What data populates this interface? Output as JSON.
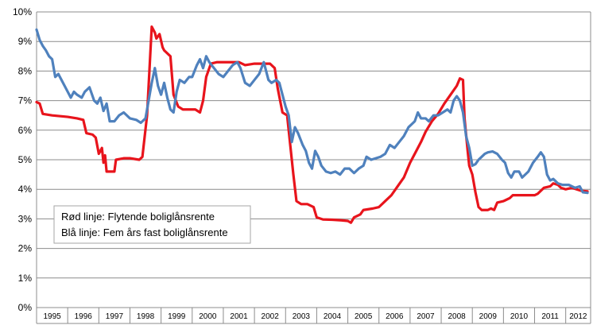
{
  "chart_data": {
    "type": "line",
    "title": "",
    "xlabel": "",
    "ylabel": "",
    "ylim": [
      0,
      10
    ],
    "yticks": [
      "0%",
      "1%",
      "2%",
      "3%",
      "4%",
      "5%",
      "6%",
      "7%",
      "8%",
      "9%",
      "10%"
    ],
    "xlim": [
      1995,
      2012.8
    ],
    "categories": [
      "1995",
      "1996",
      "1997",
      "1998",
      "1999",
      "2000",
      "2001",
      "2002",
      "2003",
      "2004",
      "2005",
      "2006",
      "2007",
      "2008",
      "2009",
      "2010",
      "2011",
      "2012"
    ],
    "grid": true,
    "legend": {
      "placement": "bottom-left",
      "lines": [
        "Rød linje: Flytende boliglånsrente",
        "Blå linje: Fem års fast boliglånsrente"
      ]
    },
    "series": [
      {
        "name": "Rød linje: Flytende boliglånsrente",
        "color": "#e8141c",
        "points": [
          [
            1995.0,
            6.95
          ],
          [
            1995.1,
            6.9
          ],
          [
            1995.2,
            6.55
          ],
          [
            1995.5,
            6.5
          ],
          [
            1996.0,
            6.45
          ],
          [
            1996.3,
            6.4
          ],
          [
            1996.5,
            6.35
          ],
          [
            1996.6,
            5.9
          ],
          [
            1996.8,
            5.85
          ],
          [
            1996.9,
            5.75
          ],
          [
            1997.0,
            5.2
          ],
          [
            1997.1,
            5.4
          ],
          [
            1997.15,
            4.9
          ],
          [
            1997.2,
            5.15
          ],
          [
            1997.25,
            4.6
          ],
          [
            1997.5,
            4.6
          ],
          [
            1997.55,
            5.0
          ],
          [
            1997.8,
            5.05
          ],
          [
            1998.0,
            5.05
          ],
          [
            1998.3,
            5.0
          ],
          [
            1998.4,
            5.1
          ],
          [
            1998.55,
            6.5
          ],
          [
            1998.65,
            8.5
          ],
          [
            1998.7,
            9.5
          ],
          [
            1998.8,
            9.3
          ],
          [
            1998.85,
            9.1
          ],
          [
            1998.95,
            9.25
          ],
          [
            1999.05,
            8.8
          ],
          [
            1999.1,
            8.7
          ],
          [
            1999.3,
            8.5
          ],
          [
            1999.4,
            7.2
          ],
          [
            1999.55,
            6.8
          ],
          [
            1999.7,
            6.7
          ],
          [
            1999.9,
            6.7
          ],
          [
            2000.1,
            6.7
          ],
          [
            2000.25,
            6.6
          ],
          [
            2000.35,
            7.0
          ],
          [
            2000.45,
            7.8
          ],
          [
            2000.6,
            8.25
          ],
          [
            2000.8,
            8.3
          ],
          [
            2001.0,
            8.3
          ],
          [
            2001.5,
            8.3
          ],
          [
            2001.7,
            8.2
          ],
          [
            2002.0,
            8.25
          ],
          [
            2002.3,
            8.25
          ],
          [
            2002.5,
            8.25
          ],
          [
            2002.65,
            8.1
          ],
          [
            2002.75,
            7.4
          ],
          [
            2002.9,
            6.6
          ],
          [
            2003.05,
            6.5
          ],
          [
            2003.15,
            5.5
          ],
          [
            2003.25,
            4.5
          ],
          [
            2003.35,
            3.6
          ],
          [
            2003.5,
            3.5
          ],
          [
            2003.7,
            3.5
          ],
          [
            2003.9,
            3.4
          ],
          [
            2004.0,
            3.05
          ],
          [
            2004.2,
            2.98
          ],
          [
            2004.5,
            2.97
          ],
          [
            2004.8,
            2.95
          ],
          [
            2005.0,
            2.93
          ],
          [
            2005.1,
            2.87
          ],
          [
            2005.2,
            3.05
          ],
          [
            2005.4,
            3.15
          ],
          [
            2005.5,
            3.3
          ],
          [
            2005.8,
            3.35
          ],
          [
            2006.0,
            3.4
          ],
          [
            2006.2,
            3.6
          ],
          [
            2006.4,
            3.8
          ],
          [
            2006.6,
            4.1
          ],
          [
            2006.8,
            4.4
          ],
          [
            2007.0,
            4.9
          ],
          [
            2007.2,
            5.3
          ],
          [
            2007.35,
            5.6
          ],
          [
            2007.5,
            5.95
          ],
          [
            2007.7,
            6.3
          ],
          [
            2007.9,
            6.55
          ],
          [
            2008.1,
            6.9
          ],
          [
            2008.3,
            7.2
          ],
          [
            2008.5,
            7.5
          ],
          [
            2008.6,
            7.75
          ],
          [
            2008.7,
            7.7
          ],
          [
            2008.75,
            6.4
          ],
          [
            2008.85,
            5.3
          ],
          [
            2008.9,
            4.8
          ],
          [
            2009.0,
            4.5
          ],
          [
            2009.1,
            3.9
          ],
          [
            2009.2,
            3.4
          ],
          [
            2009.3,
            3.3
          ],
          [
            2009.5,
            3.3
          ],
          [
            2009.6,
            3.35
          ],
          [
            2009.7,
            3.3
          ],
          [
            2009.8,
            3.55
          ],
          [
            2010.0,
            3.6
          ],
          [
            2010.2,
            3.7
          ],
          [
            2010.3,
            3.8
          ],
          [
            2010.6,
            3.8
          ],
          [
            2011.0,
            3.8
          ],
          [
            2011.1,
            3.85
          ],
          [
            2011.2,
            3.95
          ],
          [
            2011.3,
            4.05
          ],
          [
            2011.5,
            4.1
          ],
          [
            2011.6,
            4.2
          ],
          [
            2011.75,
            4.15
          ],
          [
            2011.85,
            4.05
          ],
          [
            2012.0,
            4.0
          ],
          [
            2012.2,
            4.05
          ],
          [
            2012.35,
            4.0
          ],
          [
            2012.5,
            3.95
          ],
          [
            2012.7,
            3.93
          ]
        ]
      },
      {
        "name": "Blå linje: Fem års fast boliglånsrente",
        "color": "#4f81bd",
        "points": [
          [
            1995.0,
            9.4
          ],
          [
            1995.1,
            9.05
          ],
          [
            1995.2,
            8.85
          ],
          [
            1995.3,
            8.7
          ],
          [
            1995.4,
            8.5
          ],
          [
            1995.5,
            8.4
          ],
          [
            1995.6,
            7.8
          ],
          [
            1995.7,
            7.9
          ],
          [
            1995.85,
            7.6
          ],
          [
            1996.0,
            7.3
          ],
          [
            1996.1,
            7.1
          ],
          [
            1996.2,
            7.3
          ],
          [
            1996.3,
            7.2
          ],
          [
            1996.45,
            7.1
          ],
          [
            1996.55,
            7.3
          ],
          [
            1996.7,
            7.45
          ],
          [
            1996.85,
            7.0
          ],
          [
            1996.95,
            6.9
          ],
          [
            1997.05,
            7.1
          ],
          [
            1997.15,
            6.65
          ],
          [
            1997.25,
            6.9
          ],
          [
            1997.35,
            6.3
          ],
          [
            1997.5,
            6.3
          ],
          [
            1997.65,
            6.5
          ],
          [
            1997.8,
            6.6
          ],
          [
            1998.0,
            6.4
          ],
          [
            1998.2,
            6.35
          ],
          [
            1998.35,
            6.25
          ],
          [
            1998.5,
            6.4
          ],
          [
            1998.6,
            7.0
          ],
          [
            1998.7,
            7.6
          ],
          [
            1998.8,
            8.1
          ],
          [
            1998.9,
            7.5
          ],
          [
            1999.0,
            7.2
          ],
          [
            1999.1,
            7.6
          ],
          [
            1999.2,
            7.1
          ],
          [
            1999.3,
            6.7
          ],
          [
            1999.4,
            6.6
          ],
          [
            1999.5,
            7.3
          ],
          [
            1999.6,
            7.7
          ],
          [
            1999.75,
            7.6
          ],
          [
            1999.9,
            7.8
          ],
          [
            2000.0,
            7.8
          ],
          [
            2000.15,
            8.2
          ],
          [
            2000.25,
            8.4
          ],
          [
            2000.35,
            8.1
          ],
          [
            2000.45,
            8.5
          ],
          [
            2000.55,
            8.3
          ],
          [
            2000.7,
            8.1
          ],
          [
            2000.85,
            7.9
          ],
          [
            2001.0,
            7.8
          ],
          [
            2001.15,
            8.0
          ],
          [
            2001.3,
            8.2
          ],
          [
            2001.45,
            8.3
          ],
          [
            2001.55,
            8.1
          ],
          [
            2001.7,
            7.6
          ],
          [
            2001.85,
            7.5
          ],
          [
            2002.0,
            7.7
          ],
          [
            2002.15,
            7.9
          ],
          [
            2002.3,
            8.3
          ],
          [
            2002.35,
            8.1
          ],
          [
            2002.45,
            7.7
          ],
          [
            2002.55,
            7.6
          ],
          [
            2002.7,
            7.7
          ],
          [
            2002.8,
            7.6
          ],
          [
            2002.9,
            7.2
          ],
          [
            2003.0,
            6.8
          ],
          [
            2003.1,
            6.5
          ],
          [
            2003.2,
            5.6
          ],
          [
            2003.3,
            6.1
          ],
          [
            2003.4,
            5.9
          ],
          [
            2003.55,
            5.5
          ],
          [
            2003.65,
            5.3
          ],
          [
            2003.75,
            4.9
          ],
          [
            2003.85,
            4.7
          ],
          [
            2003.95,
            5.3
          ],
          [
            2004.05,
            5.1
          ],
          [
            2004.15,
            4.8
          ],
          [
            2004.3,
            4.6
          ],
          [
            2004.45,
            4.55
          ],
          [
            2004.6,
            4.6
          ],
          [
            2004.75,
            4.5
          ],
          [
            2004.9,
            4.7
          ],
          [
            2005.05,
            4.7
          ],
          [
            2005.2,
            4.55
          ],
          [
            2005.35,
            4.7
          ],
          [
            2005.5,
            4.8
          ],
          [
            2005.6,
            5.1
          ],
          [
            2005.75,
            5.0
          ],
          [
            2005.9,
            5.05
          ],
          [
            2006.05,
            5.1
          ],
          [
            2006.2,
            5.2
          ],
          [
            2006.35,
            5.5
          ],
          [
            2006.5,
            5.4
          ],
          [
            2006.65,
            5.6
          ],
          [
            2006.8,
            5.8
          ],
          [
            2006.95,
            6.1
          ],
          [
            2007.05,
            6.2
          ],
          [
            2007.15,
            6.3
          ],
          [
            2007.25,
            6.6
          ],
          [
            2007.35,
            6.4
          ],
          [
            2007.5,
            6.4
          ],
          [
            2007.6,
            6.3
          ],
          [
            2007.75,
            6.5
          ],
          [
            2007.9,
            6.5
          ],
          [
            2008.05,
            6.6
          ],
          [
            2008.2,
            6.7
          ],
          [
            2008.3,
            6.6
          ],
          [
            2008.4,
            7.0
          ],
          [
            2008.5,
            7.15
          ],
          [
            2008.6,
            7.0
          ],
          [
            2008.7,
            6.6
          ],
          [
            2008.8,
            5.8
          ],
          [
            2008.9,
            5.4
          ],
          [
            2009.0,
            4.8
          ],
          [
            2009.1,
            4.85
          ],
          [
            2009.2,
            5.0
          ],
          [
            2009.3,
            5.1
          ],
          [
            2009.4,
            5.2
          ],
          [
            2009.5,
            5.25
          ],
          [
            2009.65,
            5.28
          ],
          [
            2009.8,
            5.2
          ],
          [
            2009.95,
            5.0
          ],
          [
            2010.05,
            4.9
          ],
          [
            2010.15,
            4.55
          ],
          [
            2010.25,
            4.4
          ],
          [
            2010.35,
            4.6
          ],
          [
            2010.5,
            4.6
          ],
          [
            2010.6,
            4.4
          ],
          [
            2010.7,
            4.5
          ],
          [
            2010.8,
            4.6
          ],
          [
            2010.95,
            4.9
          ],
          [
            2011.1,
            5.1
          ],
          [
            2011.2,
            5.25
          ],
          [
            2011.3,
            5.1
          ],
          [
            2011.4,
            4.5
          ],
          [
            2011.5,
            4.3
          ],
          [
            2011.6,
            4.35
          ],
          [
            2011.75,
            4.2
          ],
          [
            2011.9,
            4.15
          ],
          [
            2012.1,
            4.15
          ],
          [
            2012.3,
            4.05
          ],
          [
            2012.45,
            4.1
          ],
          [
            2012.55,
            3.9
          ],
          [
            2012.7,
            3.88
          ]
        ]
      }
    ]
  }
}
